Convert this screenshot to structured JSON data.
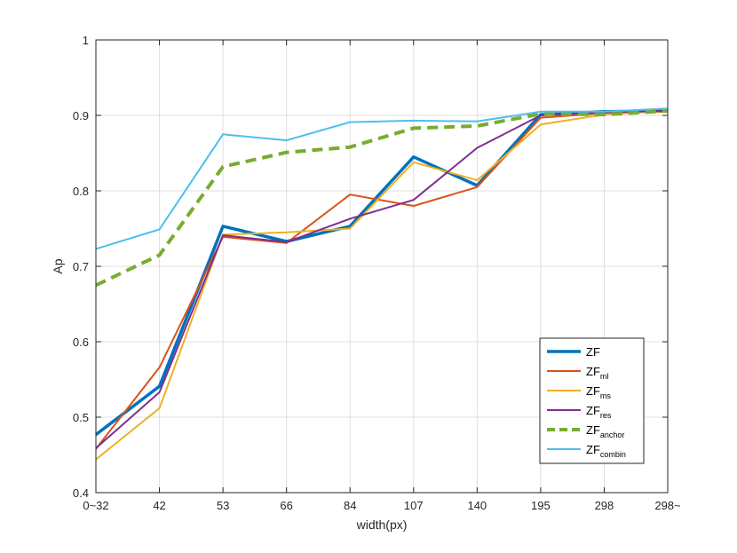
{
  "chart_data": {
    "type": "line",
    "categories": [
      "0~32",
      "42",
      "53",
      "66",
      "84",
      "107",
      "140",
      "195",
      "298",
      "298~"
    ],
    "xlabel": "width(px)",
    "ylabel": "Ap",
    "ylim": [
      0.4,
      1.0
    ],
    "yticks": [
      0.4,
      0.5,
      0.6,
      0.7,
      0.8,
      0.9,
      1.0
    ],
    "ytick_labels": [
      "0.4",
      "0.5",
      "0.6",
      "0.7",
      "0.8",
      "0.9",
      "1"
    ],
    "grid": true,
    "legend_position": "lower-right",
    "series": [
      {
        "name": "ZF",
        "base": "ZF",
        "sub": "",
        "color": "#0072BD",
        "width": 3.5,
        "dash": "",
        "values": [
          0.477,
          0.541,
          0.753,
          0.733,
          0.753,
          0.845,
          0.807,
          0.901,
          0.905,
          0.906
        ]
      },
      {
        "name": "ZF_ml",
        "base": "ZF",
        "sub": "ml",
        "color": "#D95319",
        "width": 2,
        "dash": "",
        "values": [
          0.458,
          0.566,
          0.739,
          0.731,
          0.795,
          0.78,
          0.805,
          0.897,
          0.903,
          0.905
        ]
      },
      {
        "name": "ZF_ms",
        "base": "ZF",
        "sub": "ms",
        "color": "#EDB120",
        "width": 2,
        "dash": "",
        "values": [
          0.444,
          0.512,
          0.742,
          0.745,
          0.75,
          0.838,
          0.814,
          0.888,
          0.901,
          0.906
        ]
      },
      {
        "name": "ZF_res",
        "base": "ZF",
        "sub": "res",
        "color": "#7E2F8E",
        "width": 2,
        "dash": "",
        "values": [
          0.459,
          0.533,
          0.741,
          0.732,
          0.763,
          0.788,
          0.857,
          0.9,
          0.904,
          0.906
        ]
      },
      {
        "name": "ZF_anchor",
        "base": "ZF",
        "sub": "anchor",
        "color": "#77AC30",
        "width": 4,
        "dash": "12,7",
        "values": [
          0.675,
          0.715,
          0.832,
          0.851,
          0.858,
          0.883,
          0.886,
          0.902,
          0.901,
          0.906
        ]
      },
      {
        "name": "ZF_combin",
        "base": "ZF",
        "sub": "combin",
        "color": "#4DBEEE",
        "width": 2,
        "dash": "",
        "values": [
          0.723,
          0.749,
          0.875,
          0.867,
          0.891,
          0.893,
          0.892,
          0.905,
          0.905,
          0.909
        ]
      }
    ]
  }
}
